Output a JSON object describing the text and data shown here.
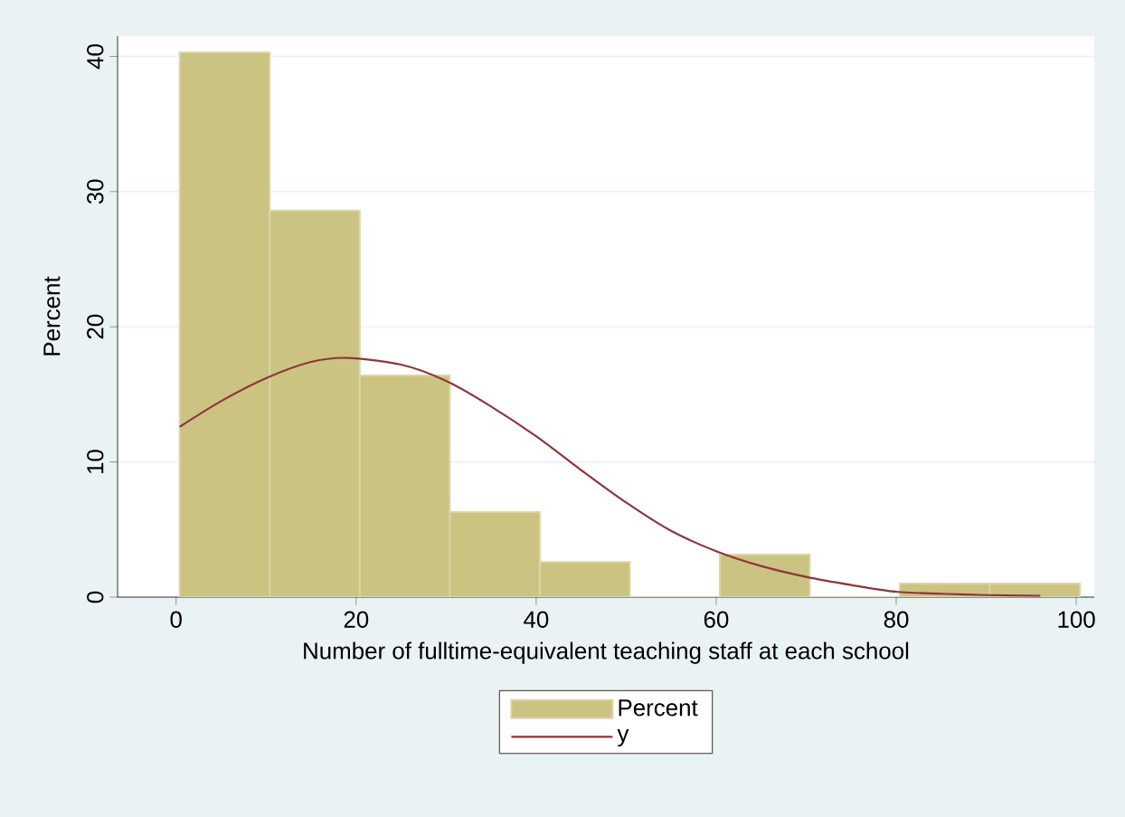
{
  "chart_data": {
    "type": "histogram",
    "xlabel": "Number of fulltime-equivalent teaching staff at each school",
    "ylabel": "Percent",
    "bins": [
      0.4,
      10.4,
      20.4,
      30.4,
      40.4,
      50.4,
      60.4,
      70.4,
      80.4,
      90.4,
      100.4
    ],
    "series": [
      {
        "name": "Percent",
        "color": "#cbc382",
        "values": [
          40.3,
          28.6,
          16.4,
          6.3,
          2.6,
          0,
          3.15,
          0,
          1.0,
          1.0
        ]
      },
      {
        "name": "y",
        "type": "line",
        "color": "#90353b",
        "x": [
          0.4,
          5,
          10,
          15,
          19,
          25,
          30,
          35,
          40,
          45,
          50,
          55,
          60,
          65,
          70,
          75,
          80,
          85,
          90,
          96
        ],
        "values": [
          12.6,
          14.5,
          16.2,
          17.4,
          17.7,
          17.2,
          16.0,
          14.1,
          11.9,
          9.4,
          7.0,
          4.9,
          3.4,
          2.3,
          1.5,
          0.9,
          0.4,
          0.25,
          0.15,
          0.1
        ]
      }
    ],
    "xlim": [
      -6.5,
      102
    ],
    "ylim": [
      0,
      41.5
    ],
    "xticks": [
      0,
      20,
      40,
      60,
      80,
      100
    ],
    "yticks": [
      0,
      10,
      20,
      30,
      40
    ],
    "grid": "y",
    "legend": "bottom"
  }
}
